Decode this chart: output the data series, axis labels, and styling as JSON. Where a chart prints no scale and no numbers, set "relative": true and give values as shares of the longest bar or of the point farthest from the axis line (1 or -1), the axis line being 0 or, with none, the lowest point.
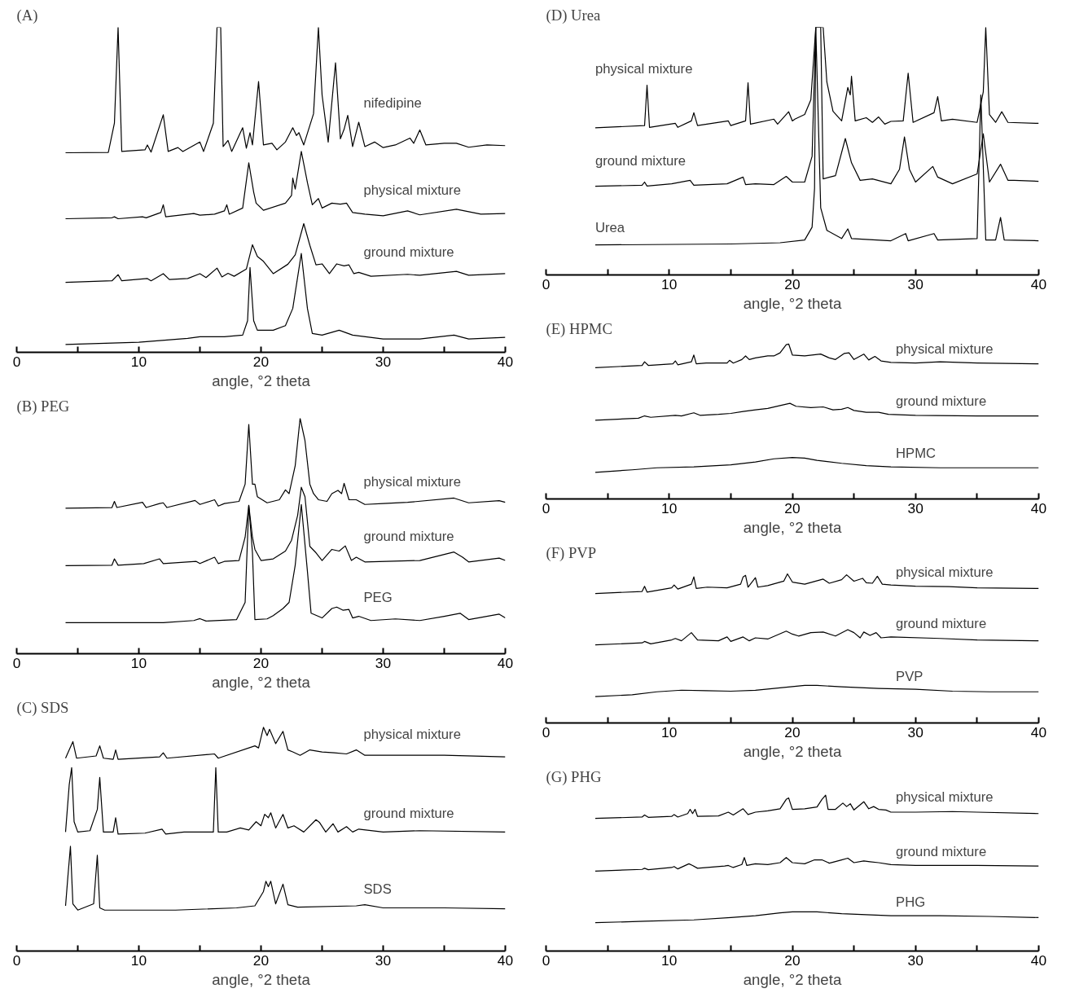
{
  "chart_data": [
    {
      "type": "line",
      "title": "(A)",
      "xlabel": "angle, °2 theta",
      "relative": true,
      "xlim": [
        0,
        40
      ],
      "xticks": [
        0,
        {
          "value": 5,
          "label": null
        },
        10,
        {
          "value": 15,
          "label": null
        },
        20,
        {
          "value": 25,
          "label": null
        },
        30,
        {
          "value": 35,
          "label": null
        },
        40
      ],
      "tick_labels": "x",
      "series": [
        {
          "name": "nifedipine",
          "color": "#000000",
          "x": [
            4,
            7.5,
            8.0,
            8.3,
            8.6,
            10.5,
            10.7,
            11.0,
            12,
            12.4,
            13.2,
            13.6,
            15,
            15.3,
            16.1,
            16.4,
            16.7,
            16.9,
            17.3,
            17.6,
            18.5,
            18.8,
            19.1,
            19.3,
            19.8,
            20.2,
            20.9,
            21.3,
            22,
            22.6,
            22.9,
            23.1,
            23.5,
            24.3,
            24.7,
            25,
            25.5,
            26.1,
            26.5,
            26.8,
            27.1,
            27.5,
            28,
            28.5,
            29.3,
            30,
            31,
            32.2,
            32.5,
            33,
            33.5,
            35,
            36,
            37,
            38.5,
            40
          ],
          "values": [
            0.614,
            0.615,
            0.705,
            1.0,
            0.618,
            0.623,
            0.638,
            0.616,
            0.731,
            0.618,
            0.63,
            0.618,
            0.647,
            0.618,
            0.705,
            1.0,
            1.0,
            0.633,
            0.652,
            0.618,
            0.691,
            0.628,
            0.676,
            0.638,
            0.833,
            0.638,
            0.643,
            0.623,
            0.647,
            0.691,
            0.667,
            0.676,
            0.638,
            0.734,
            1.0,
            0.792,
            0.647,
            0.891,
            0.657,
            0.686,
            0.729,
            0.633,
            0.708,
            0.633,
            0.647,
            0.63,
            0.638,
            0.659,
            0.643,
            0.684,
            0.638,
            0.643,
            0.643,
            0.631,
            0.638,
            0.636
          ]
        },
        {
          "name": "physical mixture",
          "color": "#000000",
          "x": [
            4,
            7.8,
            8,
            8.3,
            10.3,
            10.6,
            11.8,
            12,
            12.2,
            14.5,
            15,
            16.2,
            17,
            17.2,
            17.4,
            18.5,
            19,
            19.4,
            19.6,
            20.2,
            22,
            22.5,
            22.6,
            22.8,
            23.3,
            23.8,
            24.2,
            24.7,
            25,
            25.8,
            26.5,
            27,
            27.5,
            28.5,
            30,
            32,
            33,
            36,
            38,
            40
          ],
          "values": [
            0.411,
            0.414,
            0.417,
            0.411,
            0.417,
            0.414,
            0.43,
            0.454,
            0.417,
            0.427,
            0.422,
            0.425,
            0.435,
            0.454,
            0.425,
            0.444,
            0.583,
            0.493,
            0.459,
            0.437,
            0.459,
            0.483,
            0.536,
            0.502,
            0.618,
            0.522,
            0.454,
            0.473,
            0.444,
            0.459,
            0.456,
            0.459,
            0.43,
            0.425,
            0.42,
            0.435,
            0.423,
            0.44,
            0.425,
            0.427
          ]
        },
        {
          "name": "ground mixture",
          "color": "#000000",
          "x": [
            4,
            7.8,
            8.3,
            8.6,
            10.7,
            11,
            12,
            12.5,
            14,
            15,
            15.5,
            16.4,
            16.8,
            17.3,
            17.8,
            18.8,
            19.3,
            19.7,
            20.2,
            21,
            22.2,
            22.8,
            23.5,
            24,
            24.5,
            25,
            25.6,
            26.2,
            26.8,
            27.2,
            27.6,
            28,
            29,
            32,
            33,
            36,
            37,
            40
          ],
          "values": [
            0.215,
            0.22,
            0.239,
            0.22,
            0.227,
            0.22,
            0.242,
            0.224,
            0.227,
            0.242,
            0.23,
            0.259,
            0.232,
            0.243,
            0.234,
            0.256,
            0.331,
            0.295,
            0.28,
            0.242,
            0.271,
            0.3,
            0.396,
            0.329,
            0.269,
            0.272,
            0.242,
            0.272,
            0.266,
            0.269,
            0.242,
            0.246,
            0.234,
            0.24,
            0.237,
            0.249,
            0.237,
            0.242
          ]
        },
        {
          "color": "#000000",
          "x": [
            4,
            10,
            14,
            15,
            17,
            18.5,
            18.9,
            19.1,
            19.4,
            19.7,
            21,
            22,
            22.6,
            23.3,
            23.8,
            24.2,
            25,
            26.4,
            27.5,
            30,
            33,
            35.8,
            37,
            40
          ],
          "values": [
            0.024,
            0.031,
            0.043,
            0.048,
            0.048,
            0.053,
            0.097,
            0.261,
            0.097,
            0.068,
            0.068,
            0.082,
            0.135,
            0.304,
            0.135,
            0.058,
            0.053,
            0.068,
            0.053,
            0.041,
            0.041,
            0.053,
            0.041,
            0.046
          ]
        }
      ]
    },
    {
      "type": "line",
      "title": "(B) PEG",
      "xlabel": "angle, °2 theta",
      "relative": true,
      "xlim": [
        0,
        40
      ],
      "xticks": [
        0,
        {
          "value": 5,
          "label": null
        },
        10,
        {
          "value": 15,
          "label": null
        },
        20,
        {
          "value": 25,
          "label": null
        },
        30,
        {
          "value": 35,
          "label": null
        },
        40
      ],
      "tick_labels": "x",
      "series": [
        {
          "name": "physical mixture",
          "color": "#000000",
          "x": [
            4,
            7.8,
            8,
            8.2,
            10.3,
            10.6,
            11.7,
            12,
            12.3,
            14.6,
            15,
            16.2,
            16.5,
            17,
            18.2,
            18.7,
            19,
            19.3,
            19.5,
            19.7,
            20.5,
            21.5,
            22,
            22.3,
            22.8,
            23.2,
            23.6,
            24,
            24.3,
            24.7,
            25.4,
            25.8,
            26.3,
            26.6,
            26.8,
            27.2,
            27.8,
            28.5,
            30,
            32,
            35.8,
            37,
            39.5,
            40
          ],
          "values": [
            0.618,
            0.621,
            0.647,
            0.621,
            0.643,
            0.621,
            0.638,
            0.641,
            0.621,
            0.651,
            0.634,
            0.654,
            0.627,
            0.638,
            0.647,
            0.72,
            0.974,
            0.72,
            0.72,
            0.667,
            0.641,
            0.654,
            0.696,
            0.68,
            0.799,
            1.0,
            0.905,
            0.72,
            0.68,
            0.654,
            0.647,
            0.68,
            0.694,
            0.68,
            0.724,
            0.654,
            0.654,
            0.634,
            0.638,
            0.643,
            0.661,
            0.641,
            0.65,
            0.643
          ]
        },
        {
          "name": "ground mixture",
          "color": "#000000",
          "x": [
            4,
            7.8,
            8,
            8.3,
            10.4,
            11.7,
            12,
            14.7,
            15,
            16.2,
            16.5,
            17,
            18.2,
            18.7,
            19,
            19.3,
            19.5,
            20,
            21,
            22,
            22.5,
            23,
            23.3,
            23.6,
            24,
            24.5,
            25,
            25.8,
            26.4,
            26.9,
            27.4,
            27.8,
            28.5,
            33,
            35.8,
            36.5,
            37,
            39.5,
            40
          ],
          "values": [
            0.374,
            0.376,
            0.403,
            0.376,
            0.383,
            0.403,
            0.383,
            0.392,
            0.383,
            0.41,
            0.383,
            0.392,
            0.396,
            0.495,
            0.63,
            0.495,
            0.443,
            0.396,
            0.403,
            0.436,
            0.482,
            0.588,
            0.707,
            0.667,
            0.456,
            0.429,
            0.396,
            0.443,
            0.436,
            0.458,
            0.396,
            0.41,
            0.39,
            0.396,
            0.432,
            0.41,
            0.39,
            0.406,
            0.396
          ]
        },
        {
          "name": "PEG",
          "color": "#000000",
          "x": [
            4,
            12,
            14.5,
            15,
            15.5,
            18,
            18.7,
            19,
            19.3,
            19.5,
            20.5,
            21,
            21.8,
            22.3,
            22.8,
            23.3,
            23.8,
            24.1,
            25,
            25.8,
            26.2,
            26.7,
            27.2,
            27.5,
            28,
            29,
            31,
            33,
            35,
            36.3,
            37,
            39.5,
            40
          ],
          "values": [
            0.132,
            0.132,
            0.141,
            0.149,
            0.139,
            0.145,
            0.218,
            0.63,
            0.429,
            0.145,
            0.148,
            0.162,
            0.192,
            0.218,
            0.376,
            0.634,
            0.35,
            0.172,
            0.152,
            0.192,
            0.198,
            0.185,
            0.188,
            0.152,
            0.159,
            0.141,
            0.148,
            0.141,
            0.159,
            0.172,
            0.145,
            0.168,
            0.152
          ]
        }
      ]
    },
    {
      "type": "line",
      "title": "(C) SDS",
      "xlabel": "angle, °2 theta",
      "relative": true,
      "xlim": [
        0,
        40
      ],
      "xticks": [
        0,
        {
          "value": 5,
          "label": null
        },
        10,
        {
          "value": 15,
          "label": null
        },
        20,
        {
          "value": 25,
          "label": null
        },
        30,
        {
          "value": 35,
          "label": null
        },
        40
      ],
      "tick_labels": "x",
      "series": [
        {
          "name": "physical mixture",
          "color": "#000000",
          "x": [
            4,
            4.3,
            4.6,
            4.9,
            6.5,
            6.8,
            7.1,
            7.9,
            8.1,
            8.3,
            11.7,
            12,
            12.3,
            16.2,
            16.5,
            19.5,
            19.8,
            20.2,
            20.5,
            20.7,
            21.2,
            21.8,
            22.2,
            22.6,
            23.2,
            24,
            25,
            26,
            27,
            27.8,
            28.5,
            35,
            40
          ],
          "values": [
            0.862,
            0.899,
            0.936,
            0.862,
            0.872,
            0.917,
            0.862,
            0.857,
            0.899,
            0.857,
            0.868,
            0.886,
            0.862,
            0.881,
            0.862,
            0.917,
            0.908,
            1.0,
            0.963,
            0.991,
            0.927,
            0.982,
            0.899,
            0.89,
            0.875,
            0.899,
            0.89,
            0.886,
            0.881,
            0.899,
            0.875,
            0.875,
            0.868
          ]
        },
        {
          "name": "ground mixture",
          "color": "#000000",
          "x": [
            4,
            4.3,
            4.5,
            4.7,
            5,
            6,
            6.6,
            6.8,
            7.1,
            7.9,
            8.1,
            8.3,
            10.5,
            11.9,
            12.2,
            13.7,
            14.8,
            16.1,
            16.3,
            16.5,
            17.2,
            18.3,
            19,
            19.6,
            20,
            20.3,
            20.6,
            20.8,
            21.2,
            21.8,
            22.2,
            22.7,
            23.5,
            24.5,
            24.8,
            25.3,
            25.9,
            26.3,
            27,
            27.5,
            28,
            30,
            33,
            40
          ],
          "values": [
            0.532,
            0.743,
            0.82,
            0.578,
            0.532,
            0.538,
            0.633,
            0.776,
            0.532,
            0.532,
            0.596,
            0.523,
            0.527,
            0.545,
            0.523,
            0.532,
            0.532,
            0.532,
            0.82,
            0.532,
            0.532,
            0.55,
            0.541,
            0.578,
            0.56,
            0.611,
            0.596,
            0.618,
            0.55,
            0.611,
            0.55,
            0.56,
            0.532,
            0.587,
            0.574,
            0.532,
            0.569,
            0.532,
            0.556,
            0.532,
            0.545,
            0.532,
            0.538,
            0.532
          ]
        },
        {
          "name": "SDS",
          "color": "#000000",
          "x": [
            4,
            4.2,
            4.4,
            4.6,
            5,
            6.3,
            6.6,
            6.8,
            7.2,
            9,
            11,
            13,
            18,
            19.5,
            20.2,
            20.4,
            20.6,
            20.8,
            21.2,
            21.8,
            22.2,
            23,
            27.8,
            28.5,
            30,
            35,
            40
          ],
          "values": [
            0.202,
            0.339,
            0.468,
            0.211,
            0.183,
            0.211,
            0.428,
            0.193,
            0.183,
            0.183,
            0.183,
            0.183,
            0.193,
            0.202,
            0.266,
            0.312,
            0.288,
            0.312,
            0.211,
            0.299,
            0.207,
            0.196,
            0.202,
            0.207,
            0.193,
            0.193,
            0.189
          ]
        }
      ]
    },
    {
      "type": "line",
      "title": "(D) Urea",
      "xlabel": "angle, °2 theta",
      "relative": true,
      "xlim": [
        0,
        40
      ],
      "xticks": [
        0,
        {
          "value": 5,
          "label": null
        },
        10,
        {
          "value": 15,
          "label": null
        },
        20,
        {
          "value": 25,
          "label": null
        },
        30,
        {
          "value": 35,
          "label": null
        },
        40
      ],
      "tick_labels": "x",
      "series": [
        {
          "name": "physical mixture",
          "color": "#000000",
          "x": [
            4,
            8,
            8.2,
            8.4,
            10.5,
            10.7,
            11.8,
            12,
            12.3,
            14.8,
            15,
            16.2,
            16.4,
            16.6,
            18.5,
            18.8,
            19.7,
            20,
            20.2,
            21,
            21.5,
            21.9,
            22.5,
            22.8,
            23.3,
            24,
            24.5,
            24.7,
            24.8,
            25.1,
            26,
            26.5,
            27,
            27.5,
            28,
            29,
            29.4,
            29.8,
            31.5,
            31.8,
            32.1,
            33,
            35,
            35.5,
            35.7,
            36,
            36.5,
            37,
            37.5,
            40
          ],
          "values": [
            0.594,
            0.603,
            0.766,
            0.596,
            0.612,
            0.596,
            0.622,
            0.655,
            0.603,
            0.622,
            0.603,
            0.622,
            0.776,
            0.609,
            0.629,
            0.609,
            0.659,
            0.622,
            0.629,
            0.648,
            0.707,
            1.0,
            1.0,
            0.779,
            0.661,
            0.622,
            0.757,
            0.727,
            0.802,
            0.622,
            0.635,
            0.616,
            0.638,
            0.609,
            0.62,
            0.622,
            0.815,
            0.616,
            0.655,
            0.72,
            0.622,
            0.629,
            0.616,
            0.74,
            1.0,
            0.648,
            0.616,
            0.659,
            0.616,
            0.612
          ]
        },
        {
          "name": "ground mixture",
          "color": "#000000",
          "x": [
            4,
            7.8,
            8,
            8.2,
            10.2,
            11.7,
            12,
            14.7,
            16,
            16.2,
            17,
            18.5,
            19.5,
            20,
            21,
            21.6,
            21.9,
            22.3,
            22.5,
            23.5,
            24.3,
            24.8,
            25.5,
            26.5,
            28,
            28.7,
            29.1,
            29.5,
            30,
            31.4,
            31.8,
            33,
            35,
            35.5,
            36,
            36.9,
            37.5,
            38,
            40
          ],
          "values": [
            0.358,
            0.362,
            0.375,
            0.359,
            0.368,
            0.382,
            0.362,
            0.368,
            0.395,
            0.365,
            0.368,
            0.365,
            0.398,
            0.375,
            0.375,
            0.479,
            1.0,
            1.0,
            0.388,
            0.401,
            0.551,
            0.453,
            0.382,
            0.388,
            0.368,
            0.427,
            0.557,
            0.427,
            0.375,
            0.438,
            0.395,
            0.368,
            0.408,
            0.57,
            0.375,
            0.447,
            0.382,
            0.382,
            0.378
          ]
        },
        {
          "name": "Urea",
          "color": "#000000",
          "x": [
            4,
            15,
            19,
            21,
            21.6,
            21.8,
            21.9,
            22.3,
            22.8,
            24,
            24.5,
            24.8,
            28,
            29.2,
            29.4,
            31.5,
            31.8,
            35,
            35.3,
            35.7,
            36.5,
            36.9,
            37.2,
            40
          ],
          "values": [
            0.121,
            0.125,
            0.13,
            0.141,
            0.193,
            0.349,
            1.0,
            0.271,
            0.18,
            0.147,
            0.186,
            0.147,
            0.138,
            0.167,
            0.138,
            0.167,
            0.141,
            0.147,
            0.727,
            0.141,
            0.141,
            0.232,
            0.141,
            0.138
          ]
        }
      ]
    },
    {
      "type": "line",
      "title": "(E) HPMC",
      "xlabel": "angle, °2 theta",
      "relative": true,
      "xlim": [
        0,
        40
      ],
      "xticks": [
        0,
        {
          "value": 5,
          "label": null
        },
        10,
        {
          "value": 15,
          "label": null
        },
        20,
        {
          "value": 25,
          "label": null
        },
        30,
        {
          "value": 35,
          "label": null
        },
        40
      ],
      "tick_labels": "x",
      "series": [
        {
          "name": "physical mixture",
          "color": "#000000",
          "x": [
            4,
            7.8,
            8,
            8.3,
            10.3,
            10.5,
            10.7,
            11.8,
            12,
            12.2,
            13,
            14.7,
            14.9,
            15.2,
            15.9,
            16.2,
            16.5,
            17,
            18,
            18.5,
            19,
            19.5,
            19.7,
            20,
            21,
            22.3,
            23,
            23.5,
            24.2,
            24.6,
            25,
            25.8,
            26.2,
            26.7,
            27.2,
            28,
            30,
            32,
            35,
            40
          ],
          "values": [
            0.847,
            0.862,
            0.885,
            0.862,
            0.872,
            0.891,
            0.866,
            0.885,
            0.929,
            0.872,
            0.877,
            0.877,
            0.895,
            0.877,
            0.9,
            0.923,
            0.9,
            0.91,
            0.923,
            0.923,
            0.943,
            0.996,
            1.0,
            0.929,
            0.923,
            0.935,
            0.91,
            0.9,
            0.939,
            0.943,
            0.9,
            0.935,
            0.897,
            0.92,
            0.891,
            0.881,
            0.877,
            0.885,
            0.877,
            0.872
          ]
        },
        {
          "name": "ground mixture",
          "color": "#000000",
          "x": [
            4,
            7.5,
            8,
            8.5,
            10.5,
            11,
            12,
            12.5,
            14,
            15,
            16,
            17,
            18,
            19,
            19.8,
            20.3,
            21.5,
            22.5,
            23.3,
            24,
            24.5,
            25,
            26,
            27,
            27.8,
            30,
            35,
            40
          ],
          "values": [
            0.508,
            0.521,
            0.536,
            0.527,
            0.54,
            0.536,
            0.556,
            0.54,
            0.546,
            0.552,
            0.565,
            0.575,
            0.584,
            0.603,
            0.617,
            0.598,
            0.59,
            0.594,
            0.575,
            0.579,
            0.59,
            0.571,
            0.559,
            0.559,
            0.546,
            0.54,
            0.536,
            0.536
          ]
        },
        {
          "name": "HPMC",
          "color": "#000000",
          "x": [
            4,
            7,
            9,
            12,
            15,
            17,
            18.5,
            20,
            21,
            22,
            24,
            26,
            28,
            32,
            36,
            40
          ],
          "values": [
            0.172,
            0.188,
            0.201,
            0.207,
            0.22,
            0.239,
            0.259,
            0.268,
            0.264,
            0.249,
            0.23,
            0.215,
            0.207,
            0.201,
            0.201,
            0.201
          ]
        }
      ]
    },
    {
      "type": "line",
      "title": "(F) PVP",
      "xlabel": "angle, °2 theta",
      "relative": true,
      "xlim": [
        0,
        40
      ],
      "xticks": [
        0,
        {
          "value": 5,
          "label": null
        },
        10,
        {
          "value": 15,
          "label": null
        },
        20,
        {
          "value": 25,
          "label": null
        },
        30,
        {
          "value": 35,
          "label": null
        },
        40
      ],
      "tick_labels": "x",
      "series": [
        {
          "name": "physical mixture",
          "color": "#000000",
          "x": [
            4,
            7.8,
            8,
            8.2,
            10.2,
            10.4,
            10.7,
            11.8,
            12,
            12.2,
            13.1,
            14.7,
            15.8,
            16,
            16.2,
            16.4,
            17,
            17.2,
            18,
            19.3,
            19.6,
            20,
            21,
            22.5,
            23,
            24,
            24.4,
            25,
            25.7,
            26,
            26.5,
            26.9,
            27.3,
            28,
            30,
            32.7,
            35,
            40
          ],
          "values": [
            0.868,
            0.882,
            0.917,
            0.878,
            0.906,
            0.925,
            0.898,
            0.931,
            0.98,
            0.902,
            0.911,
            0.906,
            0.931,
            0.98,
            0.99,
            0.911,
            0.974,
            0.911,
            0.921,
            0.951,
            1.0,
            0.945,
            0.931,
            0.965,
            0.937,
            0.961,
            0.994,
            0.951,
            0.97,
            0.941,
            0.937,
            0.984,
            0.931,
            0.925,
            0.917,
            0.915,
            0.906,
            0.902
          ]
        },
        {
          "name": "ground mixture",
          "color": "#000000",
          "x": [
            4,
            7.8,
            8,
            8.5,
            10.2,
            10.5,
            11,
            11.8,
            12.3,
            14,
            14.7,
            15,
            16,
            16.5,
            17,
            18,
            19.5,
            20,
            20.5,
            21.5,
            22.5,
            23.5,
            24.5,
            25,
            25.5,
            25.8,
            26.3,
            26.8,
            27.2,
            28,
            32,
            35,
            40
          ],
          "values": [
            0.524,
            0.537,
            0.547,
            0.531,
            0.557,
            0.567,
            0.551,
            0.606,
            0.557,
            0.551,
            0.577,
            0.547,
            0.577,
            0.551,
            0.571,
            0.563,
            0.616,
            0.596,
            0.583,
            0.606,
            0.61,
            0.583,
            0.626,
            0.606,
            0.571,
            0.61,
            0.587,
            0.606,
            0.571,
            0.577,
            0.567,
            0.557,
            0.551
          ]
        },
        {
          "name": "PVP",
          "color": "#000000",
          "x": [
            4,
            7,
            9,
            11,
            13,
            15,
            17,
            19,
            21,
            22,
            24,
            27,
            30,
            33,
            36,
            40
          ],
          "values": [
            0.177,
            0.189,
            0.209,
            0.22,
            0.217,
            0.213,
            0.219,
            0.236,
            0.252,
            0.252,
            0.242,
            0.232,
            0.226,
            0.213,
            0.209,
            0.209
          ]
        }
      ]
    },
    {
      "type": "line",
      "title": "(G) PHG",
      "xlabel": "angle, °2 theta",
      "relative": true,
      "xlim": [
        0,
        40
      ],
      "xticks": [
        0,
        {
          "value": 5,
          "label": null
        },
        10,
        {
          "value": 15,
          "label": null
        },
        20,
        {
          "value": 25,
          "label": null
        },
        30,
        {
          "value": 35,
          "label": null
        },
        40
      ],
      "tick_labels": "x",
      "series": [
        {
          "name": "physical mixture",
          "color": "#000000",
          "x": [
            4,
            7.8,
            8,
            8.3,
            10.2,
            10.4,
            10.7,
            11.5,
            11.7,
            11.9,
            12.1,
            12.3,
            14,
            14.8,
            15.2,
            16,
            16.4,
            17,
            18,
            19,
            19.5,
            19.7,
            20,
            21,
            22,
            22.4,
            22.7,
            22.9,
            23.5,
            24.1,
            24.4,
            24.7,
            25,
            25.8,
            26.2,
            26.6,
            27,
            27.6,
            28,
            30,
            33,
            35,
            40
          ],
          "values": [
            0.851,
            0.86,
            0.873,
            0.858,
            0.864,
            0.876,
            0.86,
            0.882,
            0.909,
            0.882,
            0.909,
            0.864,
            0.867,
            0.891,
            0.873,
            0.913,
            0.876,
            0.891,
            0.9,
            0.913,
            0.973,
            0.982,
            0.909,
            0.913,
            0.924,
            0.973,
            1.0,
            0.909,
            0.909,
            0.949,
            0.927,
            0.945,
            0.905,
            0.958,
            0.913,
            0.927,
            0.909,
            0.905,
            0.891,
            0.891,
            0.895,
            0.891,
            0.882
          ]
        },
        {
          "name": "ground mixture",
          "color": "#000000",
          "x": [
            4,
            7.8,
            8,
            8.3,
            10.2,
            10.4,
            10.7,
            11.6,
            11.9,
            12.3,
            14.5,
            14.8,
            15.2,
            15.9,
            16.1,
            16.3,
            17,
            18,
            19,
            19.5,
            20,
            21,
            21.8,
            22.4,
            23,
            24,
            24.5,
            25,
            25.8,
            26.3,
            27,
            28,
            30,
            35,
            40
          ],
          "values": [
            0.513,
            0.524,
            0.531,
            0.522,
            0.536,
            0.542,
            0.527,
            0.56,
            0.549,
            0.531,
            0.545,
            0.549,
            0.536,
            0.555,
            0.6,
            0.549,
            0.56,
            0.555,
            0.567,
            0.6,
            0.567,
            0.56,
            0.585,
            0.585,
            0.564,
            0.585,
            0.596,
            0.567,
            0.578,
            0.573,
            0.567,
            0.555,
            0.549,
            0.549,
            0.545
          ]
        },
        {
          "name": "PHG",
          "color": "#000000",
          "x": [
            4,
            8,
            12,
            15,
            17,
            19,
            20,
            22,
            24,
            26,
            28,
            32,
            36,
            40
          ],
          "values": [
            0.182,
            0.191,
            0.2,
            0.215,
            0.227,
            0.245,
            0.251,
            0.251,
            0.24,
            0.233,
            0.227,
            0.227,
            0.222,
            0.215
          ]
        }
      ]
    }
  ]
}
